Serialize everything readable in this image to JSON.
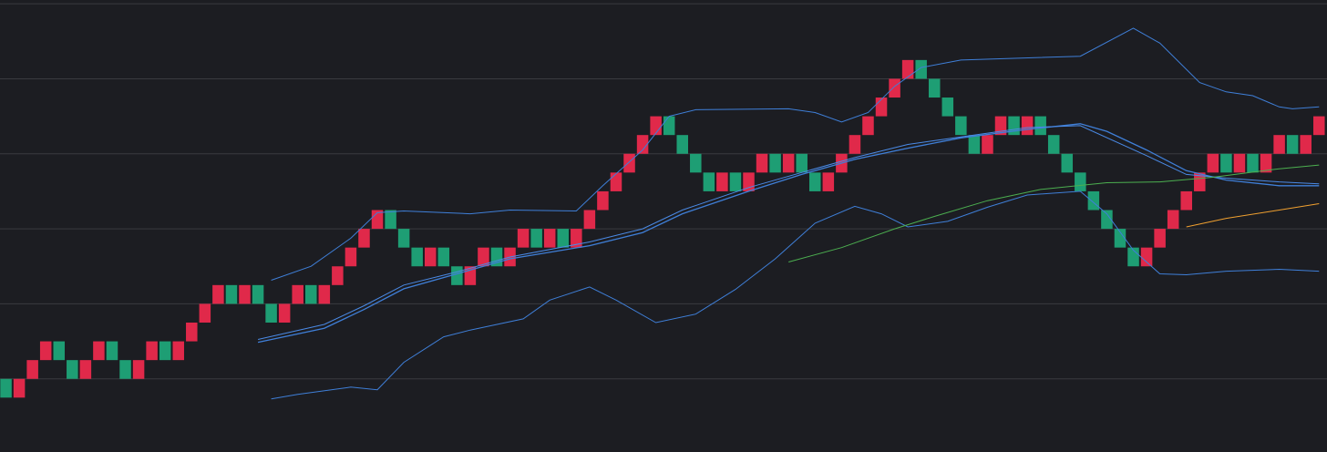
{
  "chart_data": {
    "type": "renko",
    "background": "#1c1d22",
    "grid": true,
    "grid_color": "#3a3b40",
    "up_color": "#e0294a",
    "down_color": "#1e9e74",
    "xlim": [
      -0.45,
      99.6
    ],
    "ylim": [
      -3.9,
      20.2
    ],
    "yticks": [
      0,
      4,
      8,
      12,
      16,
      20
    ],
    "open": [
      0,
      -1,
      0,
      1,
      2,
      1,
      0,
      1,
      2,
      1,
      0,
      1,
      2,
      1,
      2,
      3,
      4,
      5,
      4,
      5,
      4,
      3,
      4,
      5,
      4,
      5,
      6,
      7,
      8,
      9,
      8,
      7,
      6,
      7,
      6,
      5,
      6,
      7,
      6,
      7,
      8,
      7,
      8,
      7,
      8,
      9,
      10,
      11,
      12,
      13,
      14,
      13,
      12,
      11,
      10,
      11,
      10,
      11,
      12,
      11,
      12,
      11,
      10,
      11,
      12,
      13,
      14,
      15,
      16,
      17,
      16,
      15,
      14,
      13,
      12,
      13,
      14,
      13,
      14,
      13,
      12,
      11,
      10,
      9,
      8,
      7,
      6,
      7,
      8,
      9,
      10,
      11,
      12,
      11,
      12,
      11,
      12,
      13,
      12,
      13
    ],
    "close": [
      -1,
      0,
      1,
      2,
      1,
      0,
      1,
      2,
      1,
      0,
      1,
      2,
      1,
      2,
      3,
      4,
      5,
      4,
      5,
      4,
      3,
      4,
      5,
      4,
      5,
      6,
      7,
      8,
      9,
      8,
      7,
      6,
      7,
      6,
      5,
      6,
      7,
      6,
      7,
      8,
      7,
      8,
      7,
      8,
      9,
      10,
      11,
      12,
      13,
      14,
      13,
      12,
      11,
      10,
      11,
      10,
      11,
      12,
      11,
      12,
      11,
      10,
      11,
      12,
      13,
      14,
      15,
      16,
      17,
      16,
      15,
      14,
      13,
      12,
      13,
      14,
      13,
      14,
      13,
      12,
      11,
      10,
      9,
      8,
      7,
      6,
      7,
      8,
      9,
      10,
      11,
      12,
      11,
      12,
      11,
      12,
      13,
      12,
      13,
      14
    ],
    "lines": [
      {
        "color": "#3f7fd8",
        "width": 1,
        "x": [
          20,
          23,
          26,
          28,
          30,
          35,
          38,
          43,
          45,
          48,
          50,
          52,
          59,
          61,
          63,
          65,
          67,
          69,
          72,
          81,
          85,
          87,
          90,
          92,
          94,
          96,
          97,
          99
        ],
        "values": [
          5.26,
          6.0,
          7.5,
          8.86,
          8.95,
          8.8,
          9.0,
          8.95,
          10.3,
          12.2,
          14.0,
          14.35,
          14.4,
          14.2,
          13.7,
          14.2,
          15.6,
          16.6,
          17.0,
          17.2,
          18.7,
          17.9,
          15.8,
          15.3,
          15.1,
          14.5,
          14.4,
          14.5
        ]
      },
      {
        "color": "#3f7fd8",
        "width": 1,
        "x": [
          20,
          22,
          26,
          28,
          30,
          33,
          35,
          39,
          41,
          44,
          46,
          49,
          52,
          55,
          58,
          61,
          64,
          66,
          68,
          71,
          74,
          77,
          81,
          83,
          85,
          87,
          89,
          92,
          96,
          99
        ],
        "values": [
          -1.07,
          -0.83,
          -0.44,
          -0.58,
          0.88,
          2.24,
          2.6,
          3.2,
          4.2,
          4.9,
          4.2,
          3.0,
          3.45,
          4.77,
          6.4,
          8.3,
          9.2,
          8.8,
          8.1,
          8.4,
          9.15,
          9.8,
          10.0,
          8.8,
          6.86,
          5.6,
          5.55,
          5.74,
          5.84,
          5.74
        ]
      },
      {
        "color": "#3f7fd8",
        "width": 1.3,
        "x": [
          19,
          24,
          27,
          30,
          34,
          38,
          44,
          48,
          51,
          56,
          60,
          64,
          68,
          72,
          77,
          81,
          83,
          86,
          89,
          92,
          96,
          99
        ],
        "values": [
          1.95,
          2.7,
          3.7,
          4.8,
          5.6,
          6.4,
          7.1,
          7.8,
          8.8,
          10.0,
          10.9,
          11.7,
          12.3,
          12.85,
          13.3,
          13.6,
          13.2,
          12.2,
          11.1,
          10.6,
          10.3,
          10.3
        ]
      },
      {
        "color": "#4a8ae6",
        "width": 1,
        "x": [
          19,
          24,
          27,
          30,
          34,
          38,
          44,
          48,
          51,
          56,
          60,
          64,
          68,
          72,
          77,
          81,
          86,
          89,
          92,
          96,
          99
        ],
        "values": [
          2.1,
          2.9,
          3.9,
          5.0,
          5.7,
          6.5,
          7.3,
          8.0,
          9.0,
          10.2,
          11.0,
          11.8,
          12.5,
          12.9,
          13.4,
          13.5,
          11.9,
          10.9,
          10.7,
          10.5,
          10.4
        ]
      },
      {
        "color": "#4caf50",
        "width": 1,
        "x": [
          59,
          63,
          67,
          70,
          74,
          78,
          83,
          87,
          91,
          96,
          99
        ],
        "values": [
          6.23,
          7.0,
          8.0,
          8.66,
          9.5,
          10.1,
          10.46,
          10.5,
          10.75,
          11.2,
          11.4
        ]
      },
      {
        "color": "#f0a030",
        "width": 1,
        "x": [
          89,
          92,
          96,
          99
        ],
        "values": [
          8.1,
          8.56,
          9.0,
          9.34
        ]
      }
    ]
  }
}
